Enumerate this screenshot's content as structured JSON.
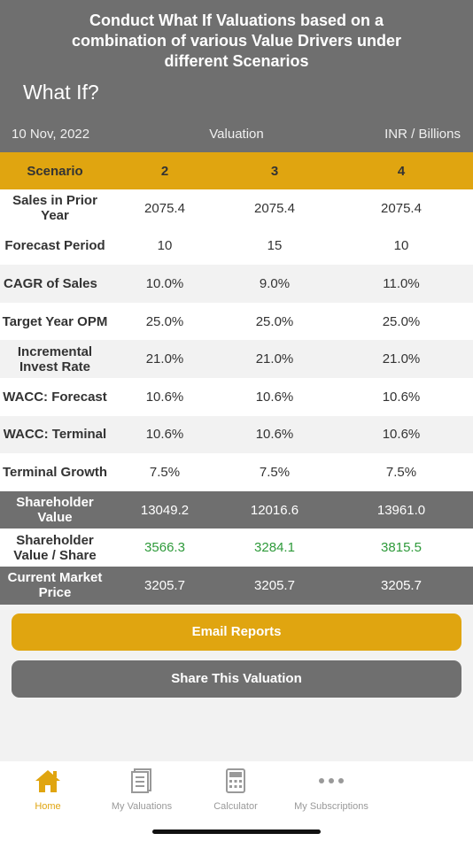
{
  "banner": {
    "line1": "Conduct What If Valuations based on a",
    "line2": "combination of various Value Drivers under",
    "line3": "different Scenarios"
  },
  "header": {
    "title": "What If?"
  },
  "meta": {
    "date": "10 Nov, 2022",
    "label": "Valuation",
    "unit": "INR / Billions"
  },
  "table": {
    "header": {
      "label": "Scenario",
      "cols": [
        "2",
        "3",
        "4"
      ]
    },
    "rows": [
      {
        "label": "Sales in Prior Year",
        "values": [
          "2075.4",
          "2075.4",
          "2075.4"
        ]
      },
      {
        "label": "Forecast Period",
        "values": [
          "10",
          "15",
          "10"
        ]
      },
      {
        "label": "CAGR of Sales",
        "values": [
          "10.0%",
          "9.0%",
          "11.0%"
        ]
      },
      {
        "label": "Target Year OPM",
        "values": [
          "25.0%",
          "25.0%",
          "25.0%"
        ]
      },
      {
        "label": "Incremental Invest Rate",
        "values": [
          "21.0%",
          "21.0%",
          "21.0%"
        ]
      },
      {
        "label": "WACC: Forecast",
        "values": [
          "10.6%",
          "10.6%",
          "10.6%"
        ]
      },
      {
        "label": "WACC: Terminal",
        "values": [
          "10.6%",
          "10.6%",
          "10.6%"
        ]
      },
      {
        "label": "Terminal Growth",
        "values": [
          "7.5%",
          "7.5%",
          "7.5%"
        ]
      },
      {
        "label": "Shareholder Value",
        "values": [
          "13049.2",
          "12016.6",
          "13961.0"
        ]
      },
      {
        "label": "Shareholder Value / Share",
        "values": [
          "3566.3",
          "3284.1",
          "3815.5"
        ]
      },
      {
        "label": "Current Market Price",
        "values": [
          "3205.7",
          "3205.7",
          "3205.7"
        ]
      }
    ]
  },
  "buttons": {
    "email": "Email Reports",
    "share": "Share This Valuation"
  },
  "tabs": [
    {
      "label": "Home",
      "icon": "home-icon",
      "active": true
    },
    {
      "label": "My Valuations",
      "icon": "document-icon",
      "active": false
    },
    {
      "label": "Calculator",
      "icon": "calculator-icon",
      "active": false
    },
    {
      "label": "My Subscriptions",
      "icon": "more-icon",
      "active": false
    }
  ],
  "colors": {
    "accent": "#e0a510",
    "dark": "#6f6f6f",
    "positive": "#2e9a3a"
  }
}
